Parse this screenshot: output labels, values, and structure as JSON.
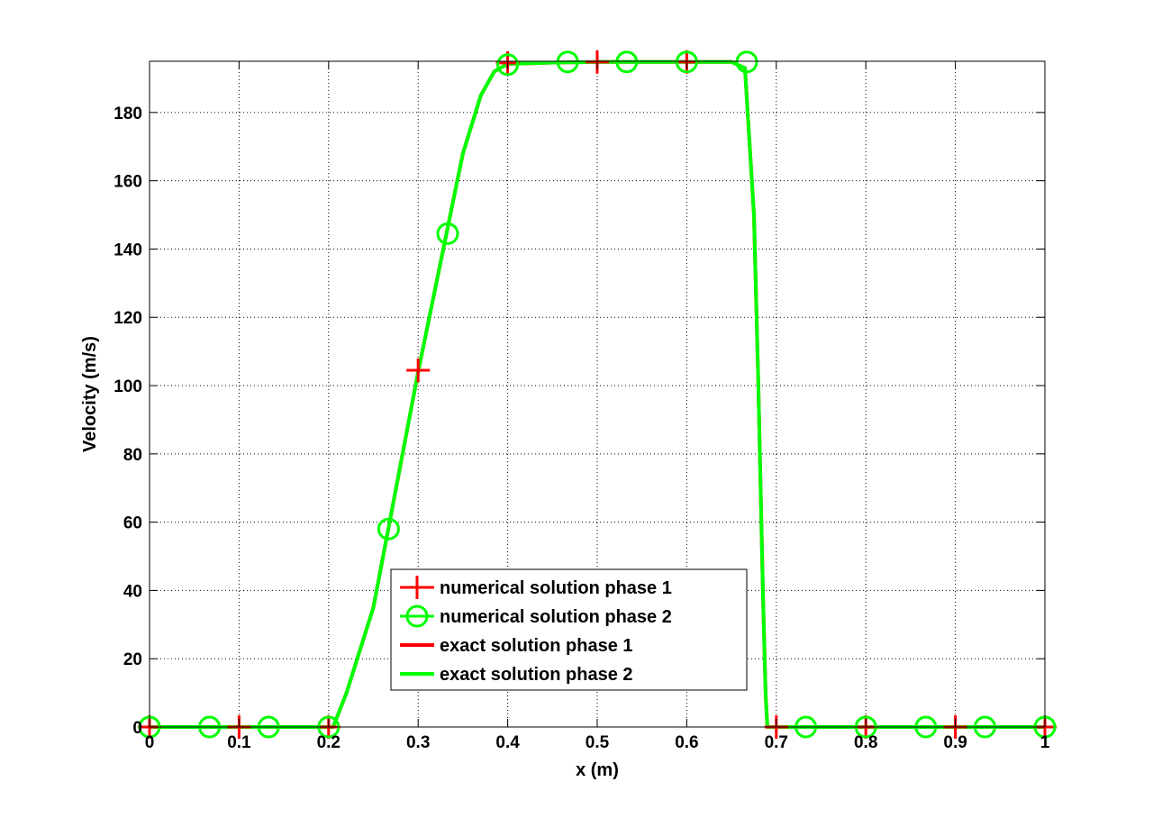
{
  "chart_data": {
    "type": "line",
    "title": "",
    "xlabel": "x (m)",
    "ylabel": "Velocity (m/s)",
    "xlim": [
      0,
      1
    ],
    "ylim": [
      0,
      195
    ],
    "xticks": [
      0,
      0.1,
      0.2,
      0.3,
      0.4,
      0.5,
      0.6,
      0.7,
      0.8,
      0.9,
      1
    ],
    "xtick_labels": [
      "0",
      "0.1",
      "0.2",
      "0.3",
      "0.4",
      "0.5",
      "0.6",
      "0.7",
      "0.8",
      "0.9",
      "1"
    ],
    "yticks": [
      0,
      20,
      40,
      60,
      80,
      100,
      120,
      140,
      160,
      180
    ],
    "ytick_labels": [
      "0",
      "20",
      "40",
      "60",
      "80",
      "100",
      "120",
      "140",
      "160",
      "180"
    ],
    "grid": true,
    "legend_position": "lower-center",
    "colors": {
      "phase1": "#ff0000",
      "phase2": "#00ff00"
    },
    "series": [
      {
        "name": "numerical solution phase 1",
        "style": "marker",
        "marker": "plus",
        "color": "#ff0000",
        "x": [
          0,
          0.1,
          0.2,
          0.3,
          0.4,
          0.5,
          0.6,
          0.7,
          0.8,
          0.9,
          1.0
        ],
        "y": [
          0,
          0,
          0,
          104.5,
          194.5,
          194.8,
          194.8,
          0,
          0,
          0,
          0
        ]
      },
      {
        "name": "numerical solution phase 2",
        "style": "marker",
        "marker": "circle",
        "color": "#00ff00",
        "x": [
          0,
          0.067,
          0.133,
          0.2,
          0.267,
          0.333,
          0.4,
          0.467,
          0.533,
          0.6,
          0.667,
          0.733,
          0.8,
          0.867,
          0.933,
          1.0
        ],
        "y": [
          0,
          0,
          0,
          0,
          58,
          144.5,
          194,
          194.8,
          194.8,
          194.8,
          194.8,
          0,
          0,
          0,
          0,
          0
        ]
      },
      {
        "name": "exact solution phase 1",
        "style": "line",
        "color": "#ff0000",
        "x": [
          0,
          0.205,
          0.22,
          0.25,
          0.3,
          0.35,
          0.37,
          0.385,
          0.4,
          0.45,
          0.5,
          0.55,
          0.6,
          0.65,
          0.665,
          0.675,
          0.68,
          0.685,
          0.688,
          0.69,
          1.0
        ],
        "y": [
          0,
          0,
          10,
          35,
          104,
          168,
          185,
          192,
          194.2,
          194.6,
          194.8,
          194.8,
          194.8,
          194.8,
          193,
          150,
          100,
          40,
          10,
          0,
          0
        ]
      },
      {
        "name": "exact solution phase 2",
        "style": "line",
        "color": "#00ff00",
        "x": [
          0,
          0.205,
          0.22,
          0.25,
          0.3,
          0.35,
          0.37,
          0.385,
          0.4,
          0.45,
          0.5,
          0.55,
          0.6,
          0.65,
          0.665,
          0.675,
          0.68,
          0.685,
          0.688,
          0.69,
          1.0
        ],
        "y": [
          0,
          0,
          10,
          35,
          104,
          168,
          185,
          192,
          194.2,
          194.6,
          194.8,
          194.8,
          194.8,
          194.8,
          193,
          150,
          100,
          40,
          10,
          0,
          0
        ]
      }
    ]
  }
}
